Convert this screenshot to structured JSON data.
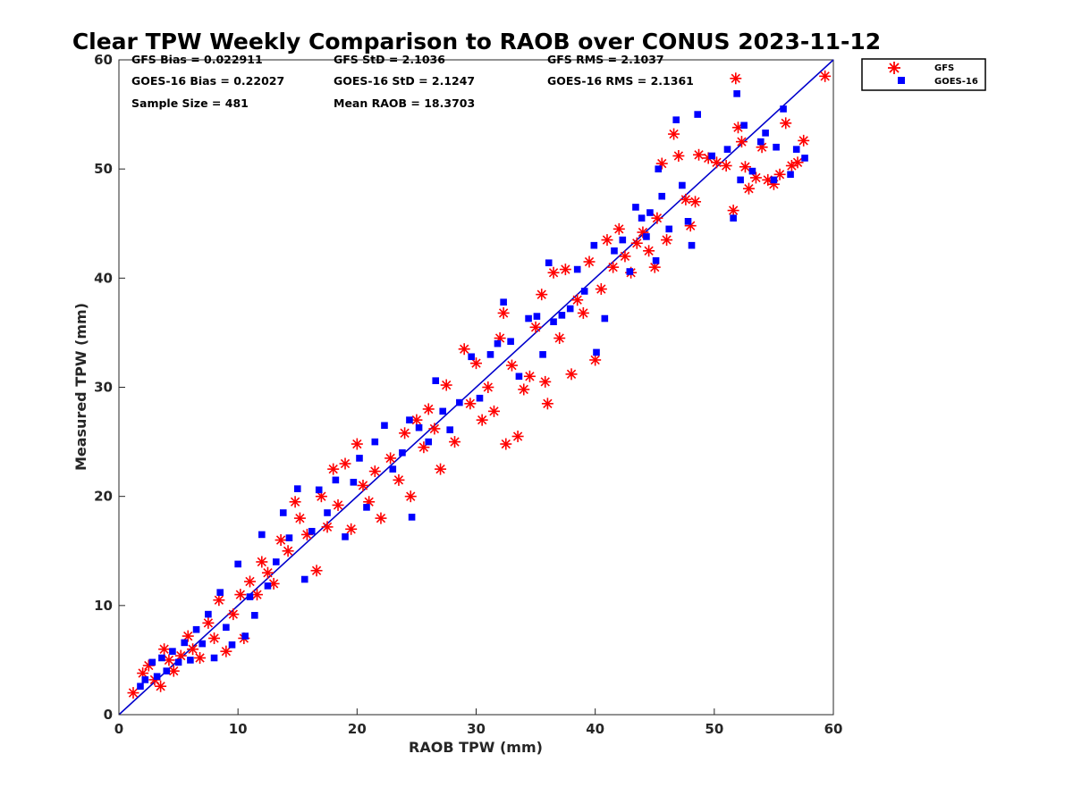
{
  "chart_data": {
    "type": "scatter",
    "title": "Clear TPW Weekly Comparison to RAOB over CONUS 2023-11-12",
    "xlabel": "RAOB TPW (mm)",
    "ylabel": "Measured TPW (mm)",
    "xlim": [
      0,
      60
    ],
    "ylim": [
      0,
      60
    ],
    "xticks": [
      "0",
      "10",
      "20",
      "30",
      "40",
      "50",
      "60"
    ],
    "yticks": [
      "0",
      "10",
      "20",
      "30",
      "40",
      "50",
      "60"
    ],
    "legend_position": "outside top-right",
    "reference_line": {
      "name": "1:1 line",
      "color": "#0000cc",
      "from": [
        0,
        0
      ],
      "to": [
        60,
        60
      ]
    },
    "stats": {
      "gfs_bias": "GFS Bias = 0.022911",
      "gfs_std": "GFS StD = 2.1036",
      "gfs_rms": "GFS RMS = 2.1037",
      "goes_bias": "GOES-16 Bias = 0.22027",
      "goes_std": "GOES-16 StD = 2.1247",
      "goes_rms": "GOES-16 RMS = 2.1361",
      "sample_size": "Sample Size = 481",
      "mean_raob": "Mean RAOB = 18.3703"
    },
    "series": [
      {
        "name": "GFS",
        "marker": "asterisk",
        "color": "#ff0000",
        "points": [
          [
            1.2,
            2.0
          ],
          [
            2.0,
            3.8
          ],
          [
            2.5,
            4.5
          ],
          [
            3.0,
            3.2
          ],
          [
            3.5,
            2.6
          ],
          [
            3.8,
            6.0
          ],
          [
            4.2,
            5.0
          ],
          [
            4.6,
            4.0
          ],
          [
            5.2,
            5.4
          ],
          [
            5.8,
            7.2
          ],
          [
            6.2,
            6.0
          ],
          [
            6.8,
            5.2
          ],
          [
            7.5,
            8.4
          ],
          [
            8.0,
            7.0
          ],
          [
            8.4,
            10.5
          ],
          [
            9.0,
            5.8
          ],
          [
            9.6,
            9.2
          ],
          [
            10.2,
            11.0
          ],
          [
            10.5,
            7.0
          ],
          [
            11.0,
            12.2
          ],
          [
            11.6,
            11.0
          ],
          [
            12.0,
            14.0
          ],
          [
            12.5,
            13.0
          ],
          [
            13.0,
            12.0
          ],
          [
            13.6,
            16.0
          ],
          [
            14.2,
            15.0
          ],
          [
            14.8,
            19.5
          ],
          [
            15.2,
            18.0
          ],
          [
            15.8,
            16.5
          ],
          [
            16.6,
            13.2
          ],
          [
            17.0,
            20.0
          ],
          [
            17.5,
            17.2
          ],
          [
            18.0,
            22.5
          ],
          [
            18.4,
            19.2
          ],
          [
            19.0,
            23.0
          ],
          [
            19.5,
            17.0
          ],
          [
            20.0,
            24.8
          ],
          [
            20.5,
            21.0
          ],
          [
            21.0,
            19.5
          ],
          [
            21.5,
            22.3
          ],
          [
            22.0,
            18.0
          ],
          [
            22.8,
            23.5
          ],
          [
            23.5,
            21.5
          ],
          [
            24.0,
            25.8
          ],
          [
            24.5,
            20.0
          ],
          [
            25.0,
            27.0
          ],
          [
            25.6,
            24.5
          ],
          [
            26.0,
            28.0
          ],
          [
            26.5,
            26.2
          ],
          [
            27.0,
            22.5
          ],
          [
            27.5,
            30.2
          ],
          [
            28.2,
            25.0
          ],
          [
            29.0,
            33.5
          ],
          [
            29.5,
            28.5
          ],
          [
            30.0,
            32.2
          ],
          [
            30.5,
            27.0
          ],
          [
            31.0,
            30.0
          ],
          [
            31.5,
            27.8
          ],
          [
            32.0,
            34.5
          ],
          [
            32.3,
            36.8
          ],
          [
            32.5,
            24.8
          ],
          [
            33.0,
            32.0
          ],
          [
            33.5,
            25.5
          ],
          [
            34.0,
            29.8
          ],
          [
            34.5,
            31.0
          ],
          [
            35.0,
            35.5
          ],
          [
            35.5,
            38.5
          ],
          [
            35.8,
            30.5
          ],
          [
            36.0,
            28.5
          ],
          [
            36.5,
            40.5
          ],
          [
            37.0,
            34.5
          ],
          [
            37.5,
            40.8
          ],
          [
            38.0,
            31.2
          ],
          [
            38.5,
            38.0
          ],
          [
            39.0,
            36.8
          ],
          [
            39.5,
            41.5
          ],
          [
            40.0,
            32.5
          ],
          [
            40.5,
            39.0
          ],
          [
            41.0,
            43.5
          ],
          [
            41.5,
            41.0
          ],
          [
            42.0,
            44.5
          ],
          [
            42.5,
            42.0
          ],
          [
            43.0,
            40.5
          ],
          [
            43.5,
            43.2
          ],
          [
            44.0,
            44.2
          ],
          [
            44.5,
            42.5
          ],
          [
            45.0,
            41.0
          ],
          [
            45.2,
            45.5
          ],
          [
            45.6,
            50.5
          ],
          [
            46.0,
            43.5
          ],
          [
            46.6,
            53.2
          ],
          [
            47.0,
            51.2
          ],
          [
            47.6,
            47.2
          ],
          [
            48.0,
            44.8
          ],
          [
            48.4,
            47.0
          ],
          [
            48.7,
            51.3
          ],
          [
            49.5,
            51.0
          ],
          [
            50.2,
            50.6
          ],
          [
            51.0,
            50.3
          ],
          [
            51.6,
            46.2
          ],
          [
            51.8,
            58.3
          ],
          [
            52.0,
            53.8
          ],
          [
            52.3,
            52.5
          ],
          [
            52.6,
            50.2
          ],
          [
            52.9,
            48.2
          ],
          [
            53.5,
            49.2
          ],
          [
            54.0,
            52.0
          ],
          [
            54.5,
            49.0
          ],
          [
            55.0,
            48.6
          ],
          [
            55.5,
            49.5
          ],
          [
            56.0,
            54.2
          ],
          [
            56.5,
            50.3
          ],
          [
            57.0,
            50.6
          ],
          [
            57.5,
            52.6
          ],
          [
            59.3,
            58.5
          ]
        ]
      },
      {
        "name": "GOES-16",
        "marker": "square",
        "color": "#0000ff",
        "points": [
          [
            1.8,
            2.6
          ],
          [
            2.2,
            3.2
          ],
          [
            2.8,
            4.8
          ],
          [
            3.2,
            3.5
          ],
          [
            3.6,
            5.2
          ],
          [
            4.0,
            4.0
          ],
          [
            4.5,
            5.8
          ],
          [
            5.0,
            4.8
          ],
          [
            5.5,
            6.6
          ],
          [
            6.0,
            5.0
          ],
          [
            6.5,
            7.8
          ],
          [
            7.0,
            6.5
          ],
          [
            7.5,
            9.2
          ],
          [
            8.0,
            5.2
          ],
          [
            8.5,
            11.2
          ],
          [
            9.0,
            8.0
          ],
          [
            9.5,
            6.4
          ],
          [
            10.0,
            13.8
          ],
          [
            10.6,
            7.2
          ],
          [
            11.0,
            10.8
          ],
          [
            11.4,
            9.1
          ],
          [
            12.0,
            16.5
          ],
          [
            12.5,
            11.8
          ],
          [
            13.2,
            14.0
          ],
          [
            13.8,
            18.5
          ],
          [
            14.3,
            16.2
          ],
          [
            15.0,
            20.7
          ],
          [
            15.6,
            12.4
          ],
          [
            16.2,
            16.8
          ],
          [
            16.8,
            20.6
          ],
          [
            17.5,
            18.5
          ],
          [
            18.2,
            21.5
          ],
          [
            19.0,
            16.3
          ],
          [
            19.7,
            21.3
          ],
          [
            20.2,
            23.5
          ],
          [
            20.8,
            19.0
          ],
          [
            21.5,
            25.0
          ],
          [
            22.3,
            26.5
          ],
          [
            23.0,
            22.5
          ],
          [
            23.8,
            24.0
          ],
          [
            24.4,
            27.0
          ],
          [
            24.6,
            18.1
          ],
          [
            25.2,
            26.3
          ],
          [
            26.0,
            25.0
          ],
          [
            26.6,
            30.6
          ],
          [
            27.2,
            27.8
          ],
          [
            27.8,
            26.1
          ],
          [
            28.6,
            28.6
          ],
          [
            29.6,
            32.8
          ],
          [
            30.3,
            29.0
          ],
          [
            31.2,
            33.0
          ],
          [
            31.8,
            34.0
          ],
          [
            32.3,
            37.8
          ],
          [
            32.9,
            34.2
          ],
          [
            33.6,
            31.0
          ],
          [
            34.4,
            36.3
          ],
          [
            35.1,
            36.5
          ],
          [
            35.6,
            33.0
          ],
          [
            36.1,
            41.4
          ],
          [
            36.5,
            36.0
          ],
          [
            37.2,
            36.6
          ],
          [
            37.9,
            37.2
          ],
          [
            38.5,
            40.8
          ],
          [
            39.1,
            38.8
          ],
          [
            39.9,
            43.0
          ],
          [
            40.1,
            33.2
          ],
          [
            40.8,
            36.3
          ],
          [
            41.6,
            42.5
          ],
          [
            42.3,
            43.5
          ],
          [
            42.9,
            40.6
          ],
          [
            43.4,
            46.5
          ],
          [
            43.9,
            45.5
          ],
          [
            44.3,
            43.8
          ],
          [
            44.6,
            46.0
          ],
          [
            45.1,
            41.6
          ],
          [
            45.3,
            50.0
          ],
          [
            45.6,
            47.5
          ],
          [
            46.2,
            44.5
          ],
          [
            46.8,
            54.5
          ],
          [
            47.3,
            48.5
          ],
          [
            47.8,
            45.2
          ],
          [
            48.1,
            43.0
          ],
          [
            48.6,
            55.0
          ],
          [
            49.8,
            51.2
          ],
          [
            51.1,
            51.8
          ],
          [
            51.6,
            45.5
          ],
          [
            51.9,
            56.9
          ],
          [
            52.2,
            49.0
          ],
          [
            52.5,
            54.0
          ],
          [
            53.2,
            49.8
          ],
          [
            53.9,
            52.5
          ],
          [
            54.3,
            53.3
          ],
          [
            55.0,
            49.0
          ],
          [
            55.2,
            52.0
          ],
          [
            55.8,
            55.5
          ],
          [
            56.4,
            49.5
          ],
          [
            56.9,
            51.8
          ],
          [
            57.6,
            51.0
          ]
        ]
      }
    ]
  }
}
